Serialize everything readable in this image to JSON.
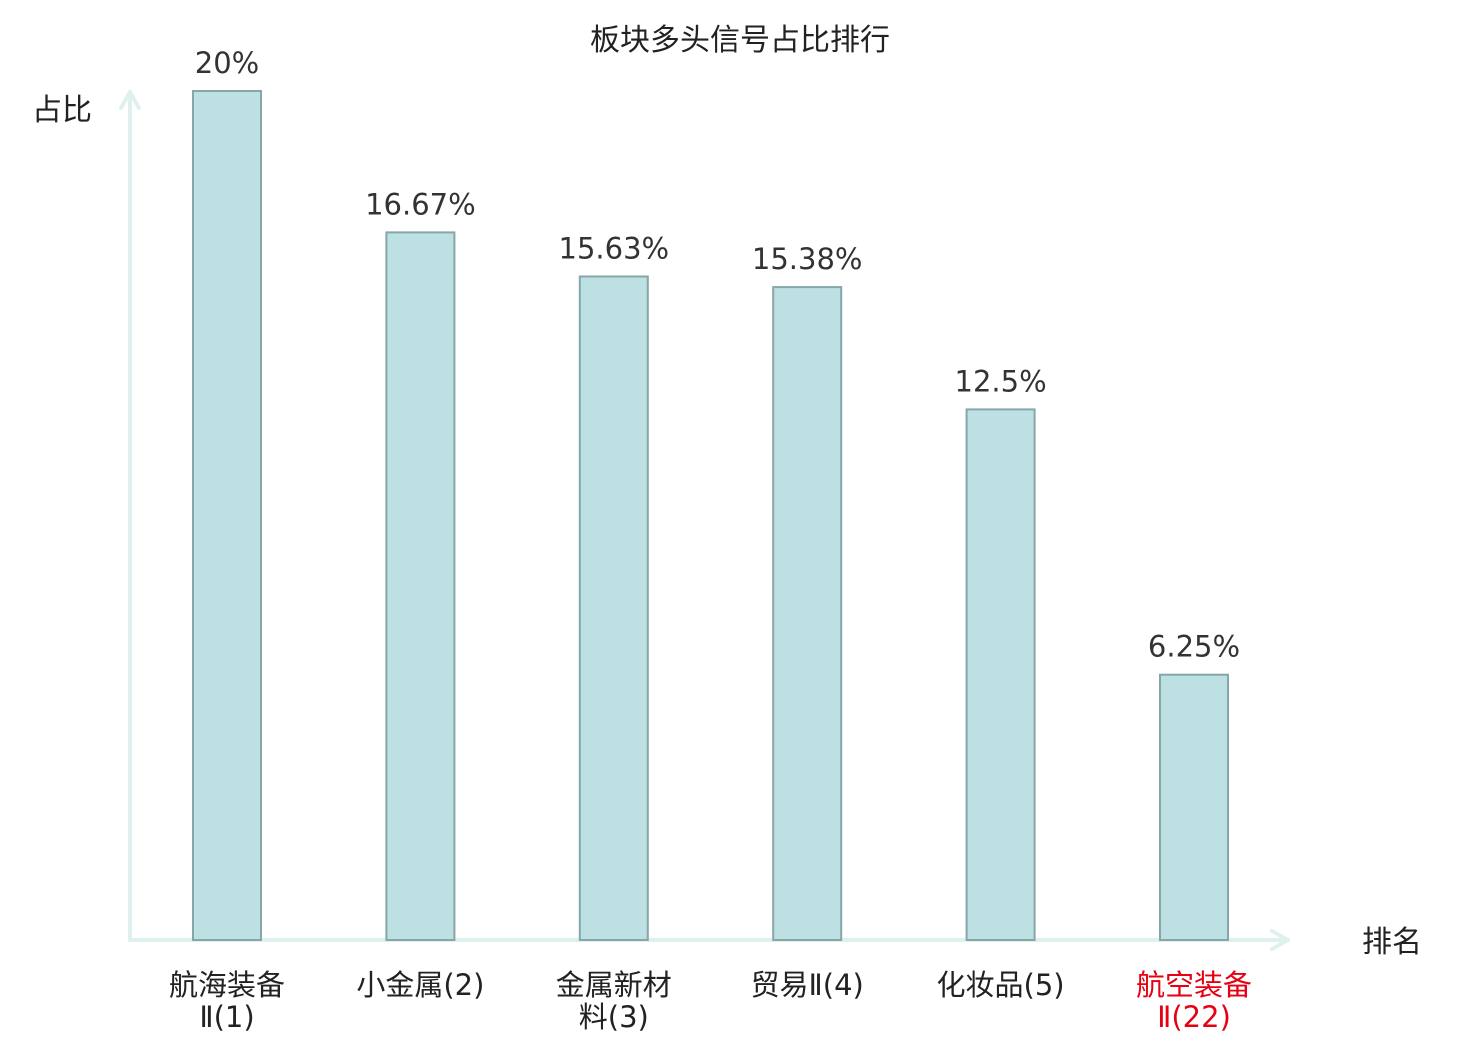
{
  "chart_data": {
    "type": "bar",
    "title": "板块多头信号占比排行",
    "xlabel": "排名",
    "ylabel": "占比",
    "categories": [
      [
        "航海装备",
        "Ⅱ(1)"
      ],
      [
        "小金属(2)"
      ],
      [
        "金属新材",
        "料(3)"
      ],
      [
        "贸易Ⅱ(4)"
      ],
      [
        "化妆品(5)"
      ],
      [
        "航空装备",
        "Ⅱ(22)"
      ]
    ],
    "values": [
      20,
      16.67,
      15.63,
      15.38,
      12.5,
      6.25
    ],
    "value_labels": [
      "20%",
      "16.67%",
      "15.63%",
      "15.38%",
      "12.5%",
      "6.25%"
    ],
    "highlight_index": 5,
    "ylim": [
      0,
      20
    ],
    "grid": false,
    "colors": {
      "bar_fill": "#bde0e3",
      "bar_stroke": "#86a6a8",
      "axis": "#dff1ef",
      "text": "#333333",
      "highlight_text": "#e60012"
    }
  }
}
